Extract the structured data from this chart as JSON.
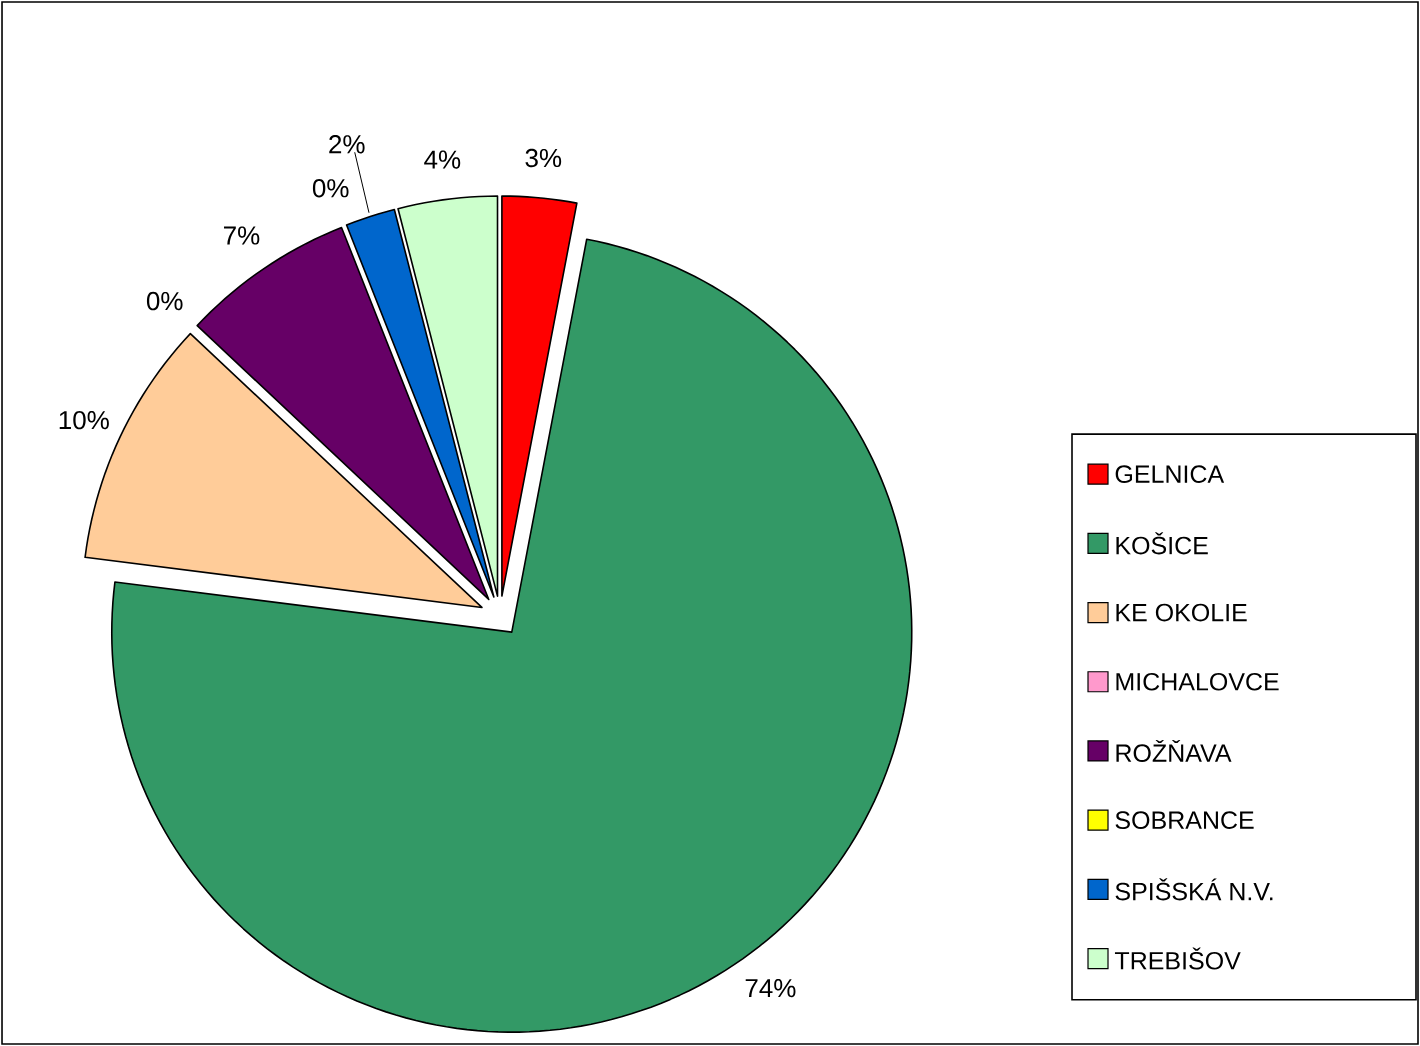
{
  "chart_data": {
    "type": "pie",
    "categories": [
      "GELNICA",
      "KOŠICE",
      "KE OKOLIE",
      "MICHALOVCE",
      "ROŽŇAVA",
      "SOBRANCE",
      "SPIŠSKÁ N.V.",
      "TREBIŠOV"
    ],
    "values": [
      3,
      74,
      10,
      0,
      7,
      0,
      2,
      4
    ],
    "colors": [
      "#ff0000",
      "#339966",
      "#ffcc99",
      "#ff99cc",
      "#660066",
      "#ffff00",
      "#0066cc",
      "#ccffcc"
    ],
    "value_labels": [
      "3%",
      "74%",
      "10%",
      "0%",
      "7%",
      "0%",
      "2%",
      "4%"
    ],
    "legend": "right"
  }
}
